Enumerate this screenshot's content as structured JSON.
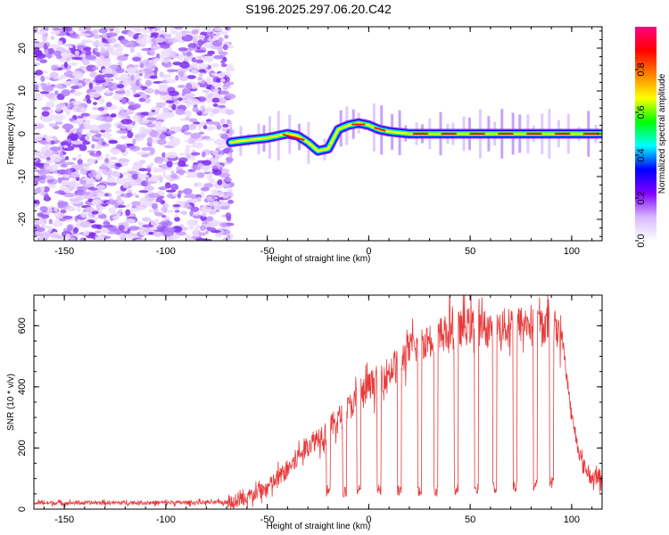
{
  "title": "S196.2025.297.06.20.C42",
  "chart_data": [
    {
      "type": "heatmap",
      "xlabel": "Height of straight line (km)",
      "ylabel": "Frequency (Hz)",
      "xlim": [
        -165,
        115
      ],
      "ylim": [
        -25,
        25
      ],
      "xticks": [
        -150,
        -100,
        -50,
        0,
        50,
        100
      ],
      "yticks": [
        -20,
        -10,
        0,
        10,
        20
      ],
      "noise_region_x": [
        -165,
        -68
      ],
      "signal_track": {
        "x": [
          -68,
          -60,
          -50,
          -40,
          -35,
          -30,
          -25,
          -20,
          -15,
          -10,
          -5,
          0,
          5,
          10,
          20,
          115
        ],
        "y": [
          -2,
          -1.5,
          -1,
          0,
          -0.5,
          -2,
          -4,
          -3.5,
          1,
          2,
          2.5,
          2,
          1,
          0.5,
          0,
          0
        ]
      },
      "colorbar": {
        "label": "Normalized spectral amplitude",
        "ticks": [
          "0.0",
          "0.2",
          "0.4",
          "0.6",
          "0.8"
        ],
        "tick_values": [
          0,
          0.2,
          0.4,
          0.6,
          0.8
        ],
        "range": [
          0,
          1
        ],
        "colors": [
          "#ffffff",
          "#d8b8ff",
          "#8000ff",
          "#0000ff",
          "#00ffff",
          "#00ff00",
          "#ffff00",
          "#ff8000",
          "#ff0000",
          "#ff0080"
        ]
      }
    },
    {
      "type": "line",
      "xlabel": "Height of straight line (km)",
      "ylabel": "SNR (10 * v/v)",
      "xlim": [
        -165,
        115
      ],
      "ylim": [
        0,
        700
      ],
      "xticks": [
        -150,
        -100,
        -50,
        0,
        50,
        100
      ],
      "yticks": [
        0,
        200,
        400,
        600
      ],
      "color": "#e8393a",
      "envelope": {
        "x": [
          -165,
          -70,
          -60,
          -50,
          -40,
          -30,
          -20,
          -10,
          0,
          10,
          20,
          30,
          40,
          50,
          60,
          70,
          80,
          90,
          95,
          100,
          105,
          110,
          115
        ],
        "y": [
          20,
          22,
          40,
          70,
          130,
          210,
          260,
          330,
          400,
          450,
          520,
          560,
          580,
          600,
          590,
          600,
          610,
          600,
          580,
          300,
          150,
          100,
          110
        ]
      },
      "dips_x": [
        -20,
        -12,
        -5,
        5,
        15,
        25,
        33,
        43,
        53,
        62,
        72,
        82,
        90
      ]
    }
  ]
}
